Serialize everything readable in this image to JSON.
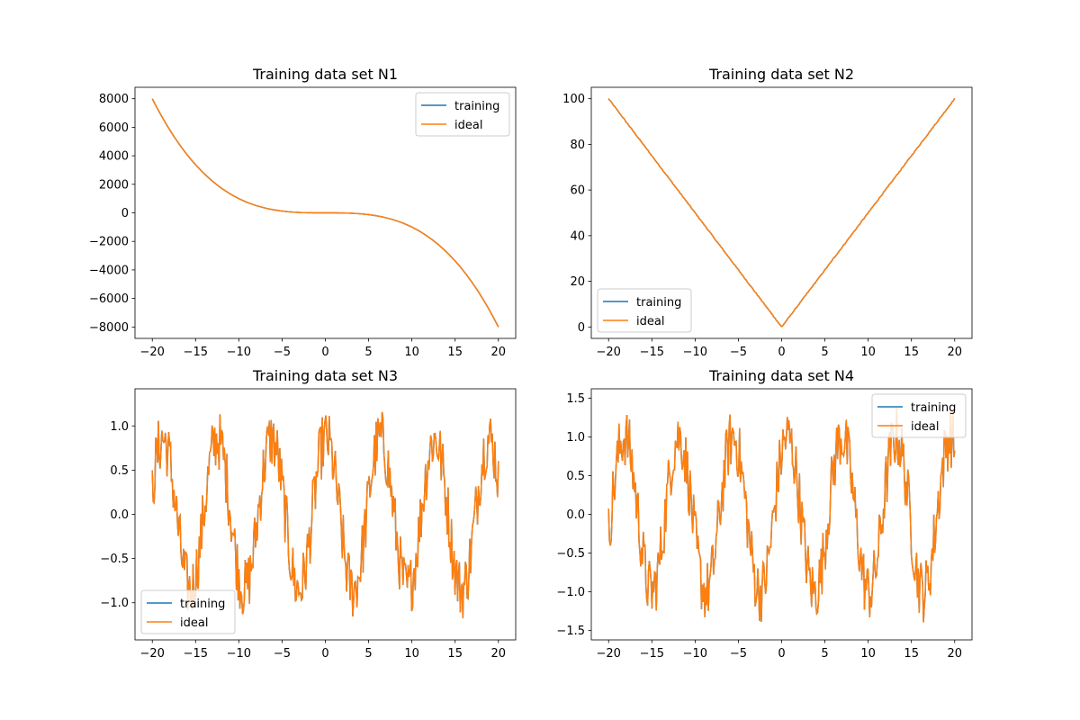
{
  "chart_data": [
    {
      "type": "line",
      "title": "Training data set N1",
      "xlim": [
        -22,
        22
      ],
      "ylim": [
        -8800,
        8800
      ],
      "xticks": [
        -20,
        -15,
        -10,
        -5,
        0,
        5,
        10,
        15,
        20
      ],
      "yticks": [
        -8000,
        -6000,
        -4000,
        -2000,
        0,
        2000,
        4000,
        6000,
        8000
      ],
      "xtick_labels": [
        "−20",
        "−15",
        "−10",
        "−5",
        "0",
        "5",
        "10",
        "15",
        "20"
      ],
      "ytick_labels": [
        "−8000",
        "−6000",
        "−4000",
        "−2000",
        "0",
        "2000",
        "4000",
        "6000",
        "8000"
      ],
      "legend_position": "upper right",
      "curve": "cubic",
      "coefficient": -1,
      "noise": 0,
      "x_start": -20,
      "x_end": 20,
      "series": [
        {
          "name": "training",
          "color": "#1f77b4"
        },
        {
          "name": "ideal",
          "color": "#ff7f0e"
        }
      ]
    },
    {
      "type": "line",
      "title": "Training data set N2",
      "xlim": [
        -22,
        22
      ],
      "ylim": [
        -5,
        105
      ],
      "xticks": [
        -20,
        -15,
        -10,
        -5,
        0,
        5,
        10,
        15,
        20
      ],
      "yticks": [
        0,
        20,
        40,
        60,
        80,
        100
      ],
      "xtick_labels": [
        "−20",
        "−15",
        "−10",
        "−5",
        "0",
        "5",
        "10",
        "15",
        "20"
      ],
      "ytick_labels": [
        "0",
        "20",
        "40",
        "60",
        "80",
        "100"
      ],
      "legend_position": "lower left",
      "curve": "abs",
      "coefficient": 5,
      "noise": 0.4,
      "x_start": -20,
      "x_end": 20,
      "series": [
        {
          "name": "training",
          "color": "#1f77b4"
        },
        {
          "name": "ideal",
          "color": "#ff7f0e"
        }
      ]
    },
    {
      "type": "line",
      "title": "Training data set N3",
      "xlim": [
        -22,
        22
      ],
      "ylim": [
        -1.42,
        1.42
      ],
      "xticks": [
        -20,
        -15,
        -10,
        -5,
        0,
        5,
        10,
        15,
        20
      ],
      "yticks": [
        -1.0,
        -0.5,
        0.0,
        0.5,
        1.0
      ],
      "xtick_labels": [
        "−20",
        "−15",
        "−10",
        "−5",
        "0",
        "5",
        "10",
        "15",
        "20"
      ],
      "ytick_labels": [
        "−1.0",
        "−0.5",
        "0.0",
        "0.5",
        "1.0"
      ],
      "legend_position": "lower left",
      "curve": "sin",
      "amplitude": 0.85,
      "period": 6.28,
      "phase": 1.5,
      "noise": 0.35,
      "x_start": -20,
      "x_end": 20,
      "series": [
        {
          "name": "training",
          "color": "#1f77b4"
        },
        {
          "name": "ideal",
          "color": "#ff7f0e"
        }
      ]
    },
    {
      "type": "line",
      "title": "Training data set N4",
      "xlim": [
        -22,
        22
      ],
      "ylim": [
        -1.62,
        1.62
      ],
      "xticks": [
        -20,
        -15,
        -10,
        -5,
        0,
        5,
        10,
        15,
        20
      ],
      "yticks": [
        -1.5,
        -1.0,
        -0.5,
        0.0,
        0.5,
        1.0,
        1.5
      ],
      "xtick_labels": [
        "−20",
        "−15",
        "−10",
        "−5",
        "0",
        "5",
        "10",
        "15",
        "20"
      ],
      "ytick_labels": [
        "−1.5",
        "−1.0",
        "−0.5",
        "0.0",
        "0.5",
        "1.0",
        "1.5"
      ],
      "legend_position": "upper right",
      "curve": "sin",
      "amplitude": 1.0,
      "period": 6.28,
      "phase": 0.9,
      "noise": 0.4,
      "x_start": -20,
      "x_end": 20,
      "series": [
        {
          "name": "training",
          "color": "#1f77b4"
        },
        {
          "name": "ideal",
          "color": "#ff7f0e"
        }
      ]
    }
  ]
}
